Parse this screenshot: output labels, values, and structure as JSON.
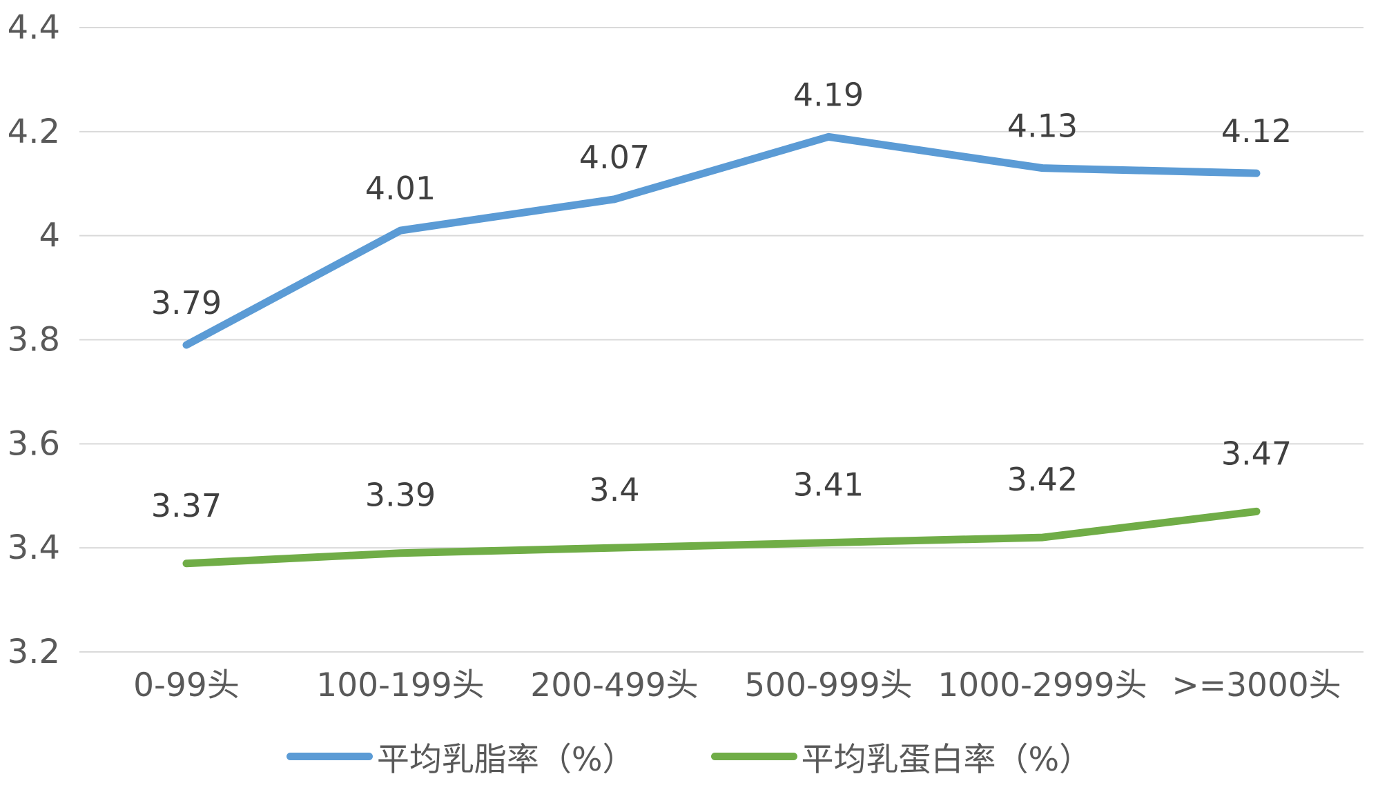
{
  "chart_data": {
    "type": "line",
    "title": "",
    "xlabel": "",
    "ylabel": "",
    "categories": [
      "0-99头",
      "100-199头",
      "200-499头",
      "500-999头",
      "1000-2999头",
      ">=3000头"
    ],
    "series": [
      {
        "id": "milk-fat",
        "name": "平均乳脂率（%）",
        "color": "#5B9BD5",
        "values": [
          3.79,
          4.01,
          4.07,
          4.19,
          4.13,
          4.12
        ],
        "labels": [
          "3.79",
          "4.01",
          "4.07",
          "4.19",
          "4.13",
          "4.12"
        ]
      },
      {
        "id": "milk-protein",
        "name": "平均乳蛋白率（%）",
        "color": "#70AD47",
        "values": [
          3.37,
          3.39,
          3.4,
          3.41,
          3.42,
          3.47
        ],
        "labels": [
          "3.37",
          "3.39",
          "3.4",
          "3.41",
          "3.42",
          "3.47"
        ]
      }
    ],
    "ylim": [
      3.2,
      4.4
    ],
    "yticks": [
      {
        "value": 4.4,
        "label": "4.4"
      },
      {
        "value": 4.2,
        "label": "4.2"
      },
      {
        "value": 4.0,
        "label": "4"
      },
      {
        "value": 3.8,
        "label": "3.8"
      },
      {
        "value": 3.6,
        "label": "3.6"
      },
      {
        "value": 3.4,
        "label": "3.4"
      },
      {
        "value": 3.2,
        "label": "3.2"
      }
    ],
    "grid": true,
    "legend_position": "bottom",
    "colors": {
      "grid": "#D9D9D9",
      "axis_text": "#595959",
      "data_label": "#404040",
      "background": "#FFFFFF"
    }
  }
}
